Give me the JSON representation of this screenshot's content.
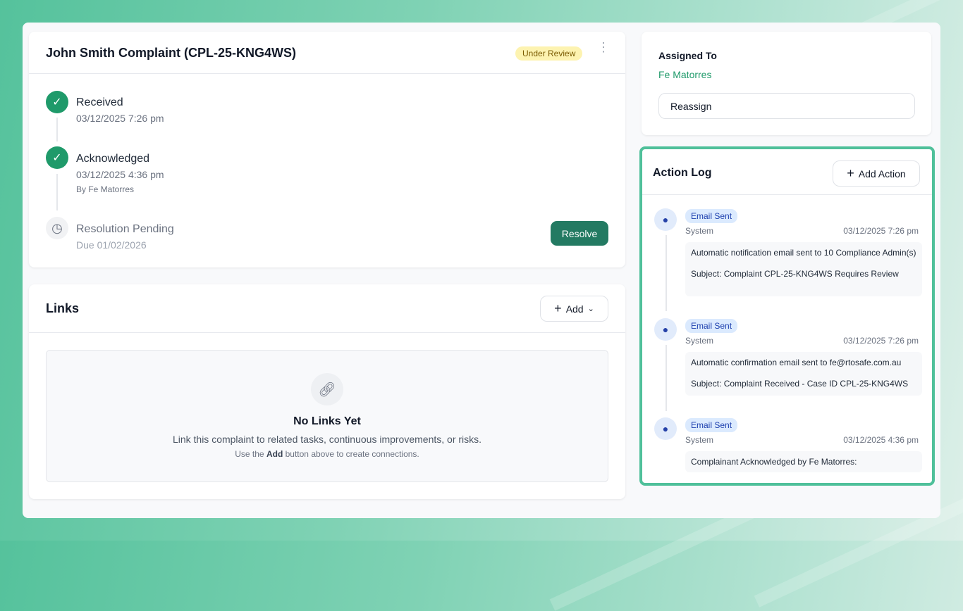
{
  "complaint": {
    "title": "John Smith Complaint (CPL-25-KNG4WS)",
    "status": "Under Review",
    "steps": [
      {
        "label": "Received",
        "date": "03/12/2025 7:26 pm",
        "state": "done"
      },
      {
        "label": "Acknowledged",
        "date": "03/12/2025 4:36 pm",
        "by": "By Fe Matorres",
        "state": "done"
      },
      {
        "label": "Resolution Pending",
        "date": "Due 01/02/2026",
        "state": "pending"
      }
    ],
    "resolve_label": "Resolve"
  },
  "links": {
    "title": "Links",
    "add_label": "Add",
    "empty_title": "No Links Yet",
    "empty_text": "Link this complaint to related tasks, continuous improvements, or risks.",
    "hint_prefix": "Use the ",
    "hint_bold": "Add",
    "hint_suffix": " button above to create connections."
  },
  "assigned": {
    "label": "Assigned To",
    "name": "Fe Matorres",
    "reassign_label": "Reassign"
  },
  "action_log": {
    "title": "Action Log",
    "add_label": "Add Action",
    "entries": [
      {
        "type": "Email Sent",
        "actor": "System",
        "time": "03/12/2025 7:26 pm",
        "line1": "Automatic notification email sent to 10 Compliance Admin(s)",
        "line2": "Subject: Complaint CPL-25-KNG4WS Requires Review"
      },
      {
        "type": "Email Sent",
        "actor": "System",
        "time": "03/12/2025 7:26 pm",
        "line1": "Automatic confirmation email sent to fe@rtosafe.com.au",
        "line2": "Subject: Complaint Received - Case ID CPL-25-KNG4WS"
      },
      {
        "type": "Email Sent",
        "actor": "System",
        "time": "03/12/2025 4:36 pm",
        "line1": "Complainant Acknowledged by Fe Matorres:"
      }
    ]
  },
  "colors": {
    "accent": "#1f9a6a",
    "highlight": "#4fc09a",
    "badge": "#fdf3b0"
  }
}
